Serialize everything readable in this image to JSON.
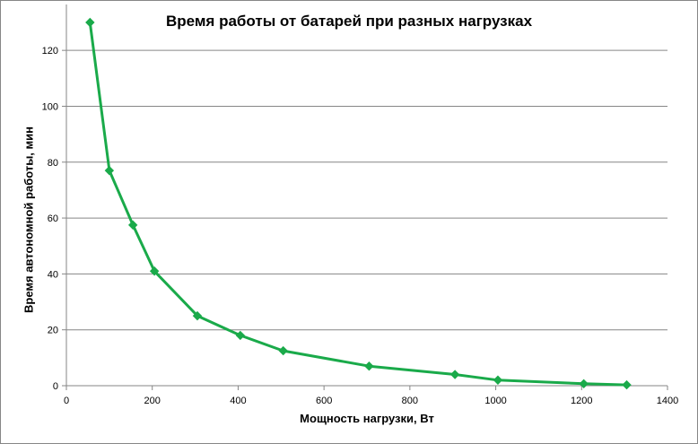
{
  "chart_data": {
    "type": "line",
    "title": "Время работы  от батарей  при разных  нагрузках",
    "xlabel": "Мощность нагрузки, Вт",
    "ylabel": "Время автономной работы, мин",
    "xlim": [
      0,
      1400
    ],
    "ylim": [
      0,
      130
    ],
    "x_ticks": [
      0,
      200,
      400,
      600,
      800,
      1000,
      1200,
      1400
    ],
    "y_ticks": [
      0,
      20,
      40,
      60,
      80,
      100,
      120
    ],
    "grid": "horizontal",
    "legend": "none",
    "series": [
      {
        "color": "#1aaa4a",
        "marker": "diamond",
        "x": [
          55,
          100,
          155,
          205,
          305,
          405,
          505,
          705,
          905,
          1005,
          1205,
          1305
        ],
        "y": [
          130,
          77,
          57.5,
          41,
          25,
          18,
          12.5,
          7,
          4,
          2,
          0.7,
          0.3
        ]
      }
    ]
  }
}
